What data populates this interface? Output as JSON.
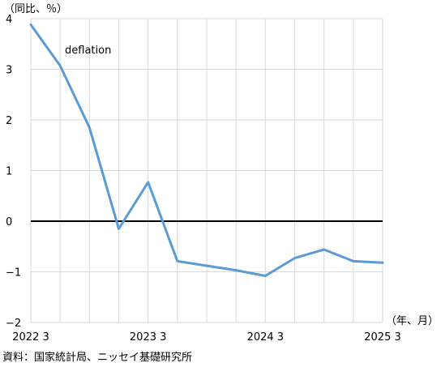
{
  "chart_data": {
    "type": "line",
    "y_unit_label": "（同比、％）",
    "x_unit_label": "（年、月）",
    "annotation": "deflation",
    "source": "資料：国家統計局、ニッセイ基礎研究所",
    "ylim": [
      -2,
      4
    ],
    "y_ticks": [
      4,
      3,
      2,
      1,
      0,
      -1,
      -2
    ],
    "y_tick_labels": [
      "4",
      "3",
      "2",
      "1",
      "0",
      "−1",
      "−2"
    ],
    "x_tick_labels": [
      "2022 3",
      "2023 3",
      "2024 3",
      "2025 3"
    ],
    "x_tick_label_index": [
      0,
      4,
      8,
      12
    ],
    "grid": true,
    "zero_line_color": "#000000",
    "line_color": "#5b9bd5",
    "series": [
      {
        "values": [
          3.88,
          3.07,
          1.85,
          -0.15,
          0.77,
          -0.79,
          -0.88,
          -0.97,
          -1.08,
          -0.73,
          -0.56,
          -0.79,
          -0.82
        ]
      }
    ]
  }
}
